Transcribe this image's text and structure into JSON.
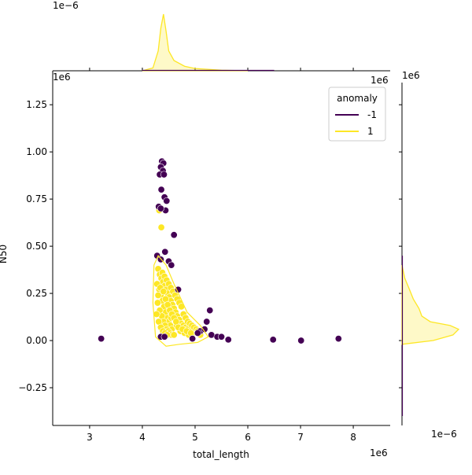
{
  "colors": {
    "anomaly_minus1": "#440154",
    "anomaly_1": "#fde725",
    "kde_fill_alpha": 0.25,
    "grid": "none"
  },
  "chart_data": {
    "type": "scatter",
    "title": "",
    "xlabel": "total_length",
    "ylabel": "N50",
    "x_offset_label": "1e6",
    "y_offset_label": "1e6",
    "marginal_x_offset_label": "1e−6",
    "marginal_y_offset_label": "1e−6",
    "marginal_y_top_offset_label": "1e6",
    "marginal_x_right_offset_label": "1e6",
    "xlim": [
      2.3,
      8.7
    ],
    "ylim": [
      -0.45,
      1.43
    ],
    "x_ticks": [
      3,
      4,
      5,
      6,
      7,
      8
    ],
    "y_ticks": [
      -0.25,
      0.0,
      0.25,
      0.5,
      0.75,
      1.0,
      1.25
    ],
    "x_tick_labels": [
      "3",
      "4",
      "5",
      "6",
      "7",
      "8"
    ],
    "y_tick_labels": [
      "−0.25",
      "0.00",
      "0.25",
      "0.50",
      "0.75",
      "1.00",
      "1.25"
    ],
    "legend": {
      "title": "anomaly",
      "placement": "upper right",
      "entries": [
        {
          "label": "-1",
          "color": "#440154"
        },
        {
          "label": "1",
          "color": "#fde725"
        }
      ]
    },
    "series": [
      {
        "name": "-1",
        "color": "#440154",
        "points": [
          [
            3.22,
            0.01
          ],
          [
            4.37,
            0.95
          ],
          [
            4.4,
            0.94
          ],
          [
            4.35,
            0.92
          ],
          [
            4.39,
            0.9
          ],
          [
            4.33,
            0.88
          ],
          [
            4.41,
            0.88
          ],
          [
            4.36,
            0.8
          ],
          [
            4.42,
            0.76
          ],
          [
            4.46,
            0.74
          ],
          [
            4.31,
            0.71
          ],
          [
            4.44,
            0.69
          ],
          [
            4.35,
            0.7
          ],
          [
            4.6,
            0.56
          ],
          [
            4.43,
            0.47
          ],
          [
            4.28,
            0.45
          ],
          [
            4.5,
            0.42
          ],
          [
            4.35,
            0.43
          ],
          [
            4.55,
            0.4
          ],
          [
            4.68,
            0.27
          ],
          [
            5.28,
            0.16
          ],
          [
            5.22,
            0.1
          ],
          [
            5.1,
            0.05
          ],
          [
            5.31,
            0.03
          ],
          [
            5.42,
            0.02
          ],
          [
            5.5,
            0.02
          ],
          [
            5.63,
            0.005
          ],
          [
            6.48,
            0.005
          ],
          [
            7.01,
            0.0
          ],
          [
            7.72,
            0.01
          ],
          [
            4.35,
            0.02
          ],
          [
            4.42,
            0.02
          ],
          [
            4.95,
            0.01
          ],
          [
            5.05,
            0.04
          ],
          [
            5.18,
            0.06
          ]
        ]
      },
      {
        "name": "1",
        "color": "#fde725",
        "points": [
          [
            4.3,
            0.38
          ],
          [
            4.33,
            0.35
          ],
          [
            4.36,
            0.33
          ],
          [
            4.39,
            0.31
          ],
          [
            4.42,
            0.29
          ],
          [
            4.45,
            0.27
          ],
          [
            4.48,
            0.25
          ],
          [
            4.51,
            0.23
          ],
          [
            4.54,
            0.21
          ],
          [
            4.57,
            0.19
          ],
          [
            4.6,
            0.17
          ],
          [
            4.63,
            0.15
          ],
          [
            4.66,
            0.13
          ],
          [
            4.7,
            0.11
          ],
          [
            4.74,
            0.09
          ],
          [
            4.78,
            0.08
          ],
          [
            4.82,
            0.07
          ],
          [
            4.86,
            0.06
          ],
          [
            4.9,
            0.05
          ],
          [
            4.95,
            0.04
          ],
          [
            4.28,
            0.3
          ],
          [
            4.32,
            0.27
          ],
          [
            4.35,
            0.24
          ],
          [
            4.38,
            0.21
          ],
          [
            4.41,
            0.18
          ],
          [
            4.44,
            0.15
          ],
          [
            4.47,
            0.12
          ],
          [
            4.5,
            0.1
          ],
          [
            4.53,
            0.08
          ],
          [
            4.56,
            0.06
          ],
          [
            4.29,
            0.2
          ],
          [
            4.33,
            0.16
          ],
          [
            4.37,
            0.13
          ],
          [
            4.4,
            0.1
          ],
          [
            4.43,
            0.08
          ],
          [
            4.46,
            0.06
          ],
          [
            4.49,
            0.05
          ],
          [
            4.52,
            0.04
          ],
          [
            4.55,
            0.03
          ],
          [
            4.6,
            0.03
          ],
          [
            4.31,
            0.1
          ],
          [
            4.35,
            0.07
          ],
          [
            4.39,
            0.05
          ],
          [
            4.43,
            0.04
          ],
          [
            4.47,
            0.03
          ],
          [
            4.27,
            0.14
          ],
          [
            4.3,
            0.24
          ],
          [
            4.34,
            0.28
          ],
          [
            4.38,
            0.36
          ],
          [
            4.42,
            0.34
          ],
          [
            4.46,
            0.32
          ],
          [
            4.5,
            0.3
          ],
          [
            4.54,
            0.28
          ],
          [
            4.58,
            0.26
          ],
          [
            4.62,
            0.24
          ],
          [
            4.66,
            0.22
          ],
          [
            4.7,
            0.2
          ],
          [
            4.74,
            0.18
          ],
          [
            4.78,
            0.14
          ],
          [
            4.82,
            0.12
          ],
          [
            4.86,
            0.1
          ],
          [
            4.9,
            0.09
          ],
          [
            4.94,
            0.08
          ],
          [
            4.98,
            0.07
          ],
          [
            5.02,
            0.06
          ],
          [
            4.36,
            0.6
          ],
          [
            4.32,
            0.69
          ],
          [
            4.55,
            0.12
          ],
          [
            4.65,
            0.08
          ],
          [
            4.72,
            0.05
          ],
          [
            4.8,
            0.04
          ],
          [
            4.88,
            0.03
          ],
          [
            5.05,
            0.05
          ],
          [
            5.1,
            0.03
          ],
          [
            4.4,
            0.26
          ],
          [
            4.44,
            0.22
          ],
          [
            4.48,
            0.19
          ],
          [
            4.52,
            0.16
          ],
          [
            4.56,
            0.14
          ],
          [
            4.6,
            0.12
          ],
          [
            4.64,
            0.1
          ],
          [
            4.68,
            0.07
          ],
          [
            4.76,
            0.06
          ],
          [
            4.84,
            0.05
          ],
          [
            4.92,
            0.04
          ]
        ]
      }
    ],
    "marginal_x_density": {
      "series": "1",
      "x": [
        4.0,
        4.2,
        4.3,
        4.35,
        4.4,
        4.45,
        4.5,
        4.6,
        4.8,
        5.0,
        5.5,
        6.0
      ],
      "y": [
        0.0,
        0.05,
        0.35,
        0.75,
        1.0,
        0.7,
        0.35,
        0.18,
        0.08,
        0.04,
        0.01,
        0.0
      ]
    },
    "marginal_y_density": {
      "series": "1",
      "y": [
        -0.02,
        0.0,
        0.03,
        0.06,
        0.08,
        0.1,
        0.13,
        0.17,
        0.22,
        0.28,
        0.33,
        0.4
      ],
      "x": [
        0.0,
        0.55,
        0.9,
        1.0,
        0.85,
        0.5,
        0.35,
        0.3,
        0.2,
        0.12,
        0.05,
        0.0
      ]
    }
  }
}
